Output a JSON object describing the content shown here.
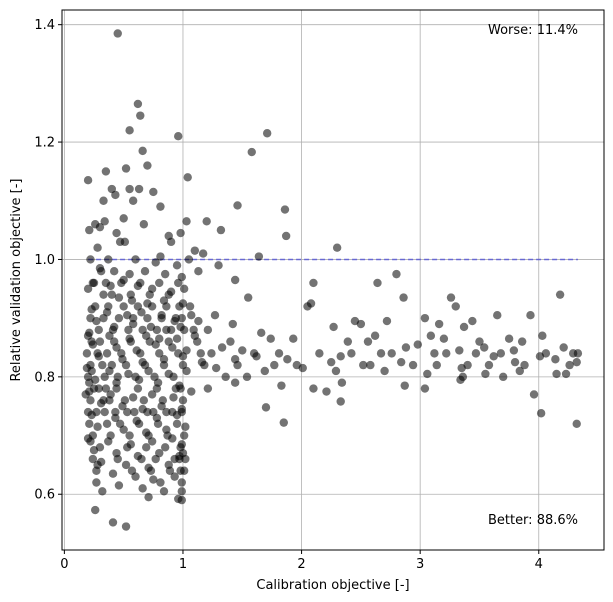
{
  "chart_data": {
    "type": "scatter",
    "title": "",
    "xlabel": "Calibration objective [-]",
    "ylabel": "Relative validation objective [-]",
    "xlim": [
      -0.02,
      4.55
    ],
    "ylim": [
      0.505,
      1.425
    ],
    "xticks": [
      0,
      1,
      2,
      3,
      4
    ],
    "yticks": [
      0.6,
      0.8,
      1.0,
      1.2,
      1.4
    ],
    "xtick_labels": [
      "0",
      "1",
      "2",
      "3",
      "4"
    ],
    "ytick_labels": [
      "0.6",
      "0.8",
      "1.0",
      "1.2",
      "1.4"
    ],
    "grid": true,
    "point_color": "#000000",
    "point_alpha": 0.55,
    "reference_line": {
      "y": 1.0,
      "x_range": [
        0.2,
        4.33
      ],
      "color": "#5a5ad6",
      "style": "dashed"
    },
    "annotations": [
      {
        "text": "Worse: 11.4%",
        "position": "top-right"
      },
      {
        "text": "Better: 88.6%",
        "position": "bottom-right"
      }
    ],
    "points": [
      [
        0.45,
        1.385
      ],
      [
        0.62,
        1.265
      ],
      [
        0.64,
        1.245
      ],
      [
        0.96,
        1.21
      ],
      [
        0.55,
        1.22
      ],
      [
        0.66,
        1.185
      ],
      [
        0.7,
        1.16
      ],
      [
        1.04,
        1.14
      ],
      [
        0.52,
        1.155
      ],
      [
        0.35,
        1.15
      ],
      [
        0.2,
        1.135
      ],
      [
        1.71,
        1.215
      ],
      [
        1.58,
        1.183
      ],
      [
        0.4,
        1.12
      ],
      [
        0.55,
        1.12
      ],
      [
        0.63,
        1.12
      ],
      [
        0.75,
        1.115
      ],
      [
        0.43,
        1.11
      ],
      [
        0.33,
        1.1
      ],
      [
        0.58,
        1.1
      ],
      [
        0.81,
        1.09
      ],
      [
        1.86,
        1.085
      ],
      [
        1.46,
        1.092
      ],
      [
        0.26,
        1.06
      ],
      [
        0.34,
        1.065
      ],
      [
        0.5,
        1.07
      ],
      [
        0.67,
        1.06
      ],
      [
        0.3,
        1.055
      ],
      [
        1.03,
        1.065
      ],
      [
        1.2,
        1.065
      ],
      [
        0.44,
        1.045
      ],
      [
        0.88,
        1.04
      ],
      [
        0.98,
        1.045
      ],
      [
        1.87,
        1.04
      ],
      [
        1.32,
        1.05
      ],
      [
        0.21,
        1.05
      ],
      [
        0.51,
        1.03
      ],
      [
        0.28,
        1.02
      ],
      [
        0.47,
        1.03
      ],
      [
        0.9,
        1.03
      ],
      [
        1.1,
        1.015
      ],
      [
        1.17,
        1.01
      ],
      [
        1.64,
        1.005
      ],
      [
        2.3,
        1.02
      ],
      [
        0.22,
        1.0
      ],
      [
        0.37,
        1.0
      ],
      [
        0.6,
        1.0
      ],
      [
        0.77,
        0.995
      ],
      [
        0.81,
        1.005
      ],
      [
        0.95,
        0.99
      ],
      [
        1.05,
        1.0
      ],
      [
        1.3,
        0.99
      ],
      [
        0.3,
        0.985
      ],
      [
        0.42,
        0.98
      ],
      [
        0.55,
        0.975
      ],
      [
        0.68,
        0.98
      ],
      [
        0.85,
        0.975
      ],
      [
        0.99,
        0.97
      ],
      [
        1.13,
        0.98
      ],
      [
        1.44,
        0.965
      ],
      [
        2.1,
        0.96
      ],
      [
        2.64,
        0.96
      ],
      [
        2.8,
        0.975
      ],
      [
        0.25,
        0.96
      ],
      [
        0.39,
        0.955
      ],
      [
        0.5,
        0.965
      ],
      [
        0.62,
        0.955
      ],
      [
        0.74,
        0.95
      ],
      [
        0.9,
        0.945
      ],
      [
        1.01,
        0.95
      ],
      [
        1.55,
        0.935
      ],
      [
        2.86,
        0.935
      ],
      [
        3.26,
        0.935
      ],
      [
        0.2,
        0.95
      ],
      [
        0.33,
        0.94
      ],
      [
        0.46,
        0.935
      ],
      [
        0.57,
        0.93
      ],
      [
        0.7,
        0.925
      ],
      [
        0.84,
        0.93
      ],
      [
        1.0,
        0.925
      ],
      [
        2.05,
        0.92
      ],
      [
        2.08,
        0.925
      ],
      [
        3.3,
        0.92
      ],
      [
        0.23,
        0.915
      ],
      [
        0.36,
        0.91
      ],
      [
        0.53,
        0.905
      ],
      [
        0.65,
        0.91
      ],
      [
        0.82,
        0.905
      ],
      [
        0.93,
        0.895
      ],
      [
        1.07,
        0.905
      ],
      [
        1.27,
        0.905
      ],
      [
        2.72,
        0.895
      ],
      [
        3.04,
        0.9
      ],
      [
        3.16,
        0.89
      ],
      [
        3.65,
        0.905
      ],
      [
        3.93,
        0.905
      ],
      [
        4.18,
        0.94
      ],
      [
        0.27,
        0.895
      ],
      [
        0.42,
        0.885
      ],
      [
        0.58,
        0.89
      ],
      [
        0.73,
        0.885
      ],
      [
        0.86,
        0.88
      ],
      [
        0.98,
        0.885
      ],
      [
        1.13,
        0.895
      ],
      [
        1.42,
        0.89
      ],
      [
        2.27,
        0.885
      ],
      [
        2.45,
        0.895
      ],
      [
        2.5,
        0.89
      ],
      [
        3.37,
        0.885
      ],
      [
        3.44,
        0.895
      ],
      [
        0.21,
        0.875
      ],
      [
        0.38,
        0.87
      ],
      [
        0.55,
        0.865
      ],
      [
        0.69,
        0.87
      ],
      [
        0.8,
        0.865
      ],
      [
        0.95,
        0.865
      ],
      [
        1.1,
        0.87
      ],
      [
        1.21,
        0.88
      ],
      [
        1.66,
        0.875
      ],
      [
        1.74,
        0.865
      ],
      [
        1.93,
        0.865
      ],
      [
        2.39,
        0.86
      ],
      [
        2.56,
        0.86
      ],
      [
        2.62,
        0.87
      ],
      [
        2.88,
        0.85
      ],
      [
        3.09,
        0.87
      ],
      [
        3.2,
        0.865
      ],
      [
        3.54,
        0.85
      ],
      [
        3.75,
        0.865
      ],
      [
        3.86,
        0.86
      ],
      [
        4.03,
        0.87
      ],
      [
        4.21,
        0.85
      ],
      [
        0.24,
        0.855
      ],
      [
        0.44,
        0.85
      ],
      [
        0.61,
        0.845
      ],
      [
        0.77,
        0.855
      ],
      [
        0.91,
        0.85
      ],
      [
        1.03,
        0.845
      ],
      [
        1.33,
        0.85
      ],
      [
        1.5,
        0.845
      ],
      [
        1.81,
        0.84
      ],
      [
        2.33,
        0.835
      ],
      [
        2.67,
        0.84
      ],
      [
        2.98,
        0.855
      ],
      [
        3.12,
        0.84
      ],
      [
        3.33,
        0.845
      ],
      [
        3.47,
        0.84
      ],
      [
        3.62,
        0.835
      ],
      [
        3.79,
        0.845
      ],
      [
        4.01,
        0.835
      ],
      [
        4.29,
        0.84
      ],
      [
        4.33,
        0.84
      ],
      [
        0.29,
        0.835
      ],
      [
        0.49,
        0.83
      ],
      [
        0.66,
        0.825
      ],
      [
        0.84,
        0.83
      ],
      [
        1.0,
        0.835
      ],
      [
        1.16,
        0.825
      ],
      [
        1.44,
        0.83
      ],
      [
        1.62,
        0.835
      ],
      [
        1.88,
        0.83
      ],
      [
        2.25,
        0.825
      ],
      [
        2.52,
        0.82
      ],
      [
        2.84,
        0.825
      ],
      [
        3.14,
        0.82
      ],
      [
        3.35,
        0.815
      ],
      [
        3.58,
        0.82
      ],
      [
        3.8,
        0.825
      ],
      [
        4.14,
        0.83
      ],
      [
        4.32,
        0.825
      ],
      [
        0.19,
        0.815
      ],
      [
        0.38,
        0.81
      ],
      [
        0.54,
        0.805
      ],
      [
        0.71,
        0.81
      ],
      [
        0.88,
        0.805
      ],
      [
        1.03,
        0.81
      ],
      [
        1.28,
        0.815
      ],
      [
        1.69,
        0.81
      ],
      [
        2.01,
        0.815
      ],
      [
        2.29,
        0.81
      ],
      [
        2.7,
        0.81
      ],
      [
        3.06,
        0.805
      ],
      [
        3.36,
        0.8
      ],
      [
        3.55,
        0.805
      ],
      [
        3.7,
        0.8
      ],
      [
        3.84,
        0.81
      ],
      [
        4.15,
        0.805
      ],
      [
        4.23,
        0.805
      ],
      [
        0.26,
        0.795
      ],
      [
        0.44,
        0.79
      ],
      [
        0.63,
        0.795
      ],
      [
        0.79,
        0.79
      ],
      [
        0.97,
        0.785
      ],
      [
        1.21,
        0.78
      ],
      [
        1.44,
        0.79
      ],
      [
        1.83,
        0.785
      ],
      [
        2.1,
        0.78
      ],
      [
        2.21,
        0.775
      ],
      [
        2.34,
        0.79
      ],
      [
        2.87,
        0.785
      ],
      [
        3.04,
        0.78
      ],
      [
        3.34,
        0.795
      ],
      [
        3.96,
        0.77
      ],
      [
        0.21,
        0.775
      ],
      [
        0.39,
        0.77
      ],
      [
        0.58,
        0.765
      ],
      [
        0.74,
        0.77
      ],
      [
        0.92,
        0.765
      ],
      [
        1.07,
        0.775
      ],
      [
        0.31,
        0.755
      ],
      [
        0.49,
        0.75
      ],
      [
        0.66,
        0.745
      ],
      [
        0.82,
        0.75
      ],
      [
        0.99,
        0.745
      ],
      [
        1.7,
        0.748
      ],
      [
        2.33,
        0.758
      ],
      [
        4.02,
        0.738
      ],
      [
        0.23,
        0.735
      ],
      [
        0.43,
        0.73
      ],
      [
        0.61,
        0.725
      ],
      [
        0.78,
        0.73
      ],
      [
        0.95,
        0.735
      ],
      [
        1.85,
        0.722
      ],
      [
        4.32,
        0.72
      ],
      [
        0.28,
        0.715
      ],
      [
        0.5,
        0.71
      ],
      [
        0.69,
        0.705
      ],
      [
        0.86,
        0.71
      ],
      [
        1.02,
        0.715
      ],
      [
        0.2,
        0.695
      ],
      [
        0.37,
        0.69
      ],
      [
        0.56,
        0.685
      ],
      [
        0.74,
        0.69
      ],
      [
        0.91,
        0.695
      ],
      [
        0.99,
        0.685
      ],
      [
        0.25,
        0.675
      ],
      [
        0.44,
        0.67
      ],
      [
        0.62,
        0.665
      ],
      [
        0.8,
        0.67
      ],
      [
        0.97,
        0.665
      ],
      [
        1.02,
        0.66
      ],
      [
        0.31,
        0.655
      ],
      [
        0.52,
        0.65
      ],
      [
        0.71,
        0.645
      ],
      [
        0.88,
        0.65
      ],
      [
        0.98,
        0.64
      ],
      [
        0.27,
        0.64
      ],
      [
        0.41,
        0.635
      ],
      [
        0.6,
        0.63
      ],
      [
        0.75,
        0.625
      ],
      [
        0.93,
        0.63
      ],
      [
        0.46,
        0.615
      ],
      [
        0.66,
        0.61
      ],
      [
        0.84,
        0.605
      ],
      [
        0.99,
        0.605
      ],
      [
        0.32,
        0.605
      ],
      [
        0.71,
        0.595
      ],
      [
        0.96,
        0.592
      ],
      [
        0.99,
        0.59
      ],
      [
        0.26,
        0.573
      ],
      [
        0.41,
        0.552
      ],
      [
        0.52,
        0.545
      ],
      [
        0.2,
        0.8
      ],
      [
        0.22,
        0.82
      ],
      [
        0.25,
        0.78
      ],
      [
        0.3,
        0.86
      ],
      [
        0.34,
        0.8
      ],
      [
        0.36,
        0.84
      ],
      [
        0.4,
        0.82
      ],
      [
        0.42,
        0.86
      ],
      [
        0.45,
        0.8
      ],
      [
        0.48,
        0.84
      ],
      [
        0.52,
        0.82
      ],
      [
        0.56,
        0.86
      ],
      [
        0.6,
        0.8
      ],
      [
        0.64,
        0.84
      ],
      [
        0.68,
        0.82
      ],
      [
        0.72,
        0.86
      ],
      [
        0.76,
        0.8
      ],
      [
        0.8,
        0.84
      ],
      [
        0.84,
        0.82
      ],
      [
        0.88,
        0.86
      ],
      [
        0.92,
        0.8
      ],
      [
        0.96,
        0.84
      ],
      [
        1.0,
        0.82
      ],
      [
        0.99,
        0.9
      ],
      [
        0.97,
        0.92
      ],
      [
        1.01,
        0.88
      ],
      [
        0.98,
        0.78
      ],
      [
        1.0,
        0.76
      ],
      [
        0.99,
        0.74
      ],
      [
        1.01,
        0.7
      ],
      [
        0.98,
        0.68
      ],
      [
        1.0,
        0.67
      ],
      [
        0.97,
        0.66
      ],
      [
        1.01,
        0.64
      ],
      [
        0.99,
        0.62
      ],
      [
        0.21,
        0.72
      ],
      [
        0.24,
        0.7
      ],
      [
        0.27,
        0.74
      ],
      [
        0.3,
        0.68
      ],
      [
        0.33,
        0.76
      ],
      [
        0.36,
        0.72
      ],
      [
        0.39,
        0.7
      ],
      [
        0.43,
        0.74
      ],
      [
        0.47,
        0.72
      ],
      [
        0.51,
        0.76
      ],
      [
        0.55,
        0.7
      ],
      [
        0.59,
        0.74
      ],
      [
        0.63,
        0.72
      ],
      [
        0.67,
        0.76
      ],
      [
        0.71,
        0.7
      ],
      [
        0.75,
        0.74
      ],
      [
        0.79,
        0.72
      ],
      [
        0.83,
        0.76
      ],
      [
        0.87,
        0.7
      ],
      [
        0.91,
        0.74
      ],
      [
        0.95,
        0.72
      ],
      [
        0.22,
        0.9
      ],
      [
        0.26,
        0.92
      ],
      [
        0.29,
        0.88
      ],
      [
        0.33,
        0.9
      ],
      [
        0.37,
        0.92
      ],
      [
        0.41,
        0.88
      ],
      [
        0.46,
        0.9
      ],
      [
        0.5,
        0.92
      ],
      [
        0.54,
        0.88
      ],
      [
        0.58,
        0.9
      ],
      [
        0.62,
        0.92
      ],
      [
        0.66,
        0.88
      ],
      [
        0.7,
        0.9
      ],
      [
        0.74,
        0.92
      ],
      [
        0.78,
        0.88
      ],
      [
        0.82,
        0.9
      ],
      [
        0.86,
        0.92
      ],
      [
        0.9,
        0.88
      ],
      [
        0.94,
        0.9
      ],
      [
        0.23,
        0.86
      ],
      [
        0.28,
        0.84
      ],
      [
        0.32,
        0.82
      ],
      [
        0.35,
        0.78
      ],
      [
        0.38,
        0.76
      ],
      [
        0.45,
        0.66
      ],
      [
        0.53,
        0.68
      ],
      [
        0.57,
        0.64
      ],
      [
        0.65,
        0.66
      ],
      [
        0.69,
        0.68
      ],
      [
        0.73,
        0.64
      ],
      [
        0.77,
        0.66
      ],
      [
        0.81,
        0.62
      ],
      [
        0.85,
        0.68
      ],
      [
        0.89,
        0.64
      ],
      [
        0.93,
        0.66
      ],
      [
        0.24,
        0.96
      ],
      [
        0.31,
        0.98
      ],
      [
        0.35,
        0.96
      ],
      [
        0.4,
        0.94
      ],
      [
        0.48,
        0.96
      ],
      [
        0.56,
        0.94
      ],
      [
        0.64,
        0.96
      ],
      [
        0.72,
        0.94
      ],
      [
        0.8,
        0.96
      ],
      [
        0.88,
        0.94
      ],
      [
        0.96,
        0.96
      ],
      [
        1.06,
        0.92
      ],
      [
        1.09,
        0.88
      ],
      [
        1.12,
        0.86
      ],
      [
        1.15,
        0.84
      ],
      [
        1.18,
        0.82
      ],
      [
        1.24,
        0.84
      ],
      [
        1.36,
        0.8
      ],
      [
        1.4,
        0.86
      ],
      [
        1.46,
        0.82
      ],
      [
        1.54,
        0.8
      ],
      [
        1.6,
        0.84
      ],
      [
        1.77,
        0.82
      ],
      [
        1.96,
        0.82
      ],
      [
        2.15,
        0.84
      ],
      [
        2.42,
        0.84
      ],
      [
        2.58,
        0.82
      ],
      [
        2.76,
        0.84
      ],
      [
        2.94,
        0.82
      ],
      [
        3.22,
        0.84
      ],
      [
        3.4,
        0.82
      ],
      [
        3.5,
        0.86
      ],
      [
        3.68,
        0.84
      ],
      [
        3.88,
        0.82
      ],
      [
        4.06,
        0.84
      ],
      [
        4.26,
        0.82
      ],
      [
        0.22,
        0.76
      ],
      [
        0.29,
        0.78
      ],
      [
        0.34,
        0.74
      ],
      [
        0.44,
        0.78
      ],
      [
        0.53,
        0.74
      ],
      [
        0.62,
        0.78
      ],
      [
        0.7,
        0.74
      ],
      [
        0.78,
        0.78
      ],
      [
        0.86,
        0.74
      ],
      [
        0.94,
        0.78
      ],
      [
        0.2,
        0.87
      ],
      [
        0.19,
        0.84
      ],
      [
        0.21,
        0.79
      ],
      [
        0.23,
        0.81
      ],
      [
        0.18,
        0.77
      ],
      [
        0.2,
        0.74
      ],
      [
        0.22,
        0.69
      ],
      [
        0.24,
        0.66
      ],
      [
        0.27,
        0.62
      ],
      [
        0.28,
        0.65
      ]
    ]
  }
}
